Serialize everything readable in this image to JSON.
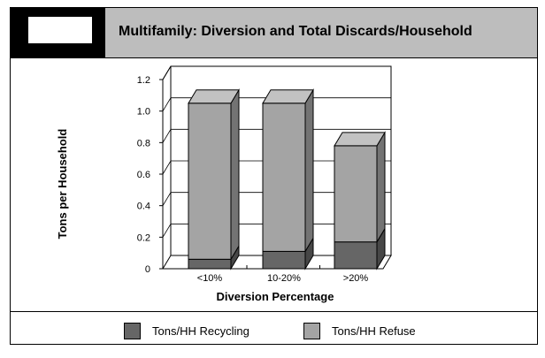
{
  "chart_data": {
    "type": "bar",
    "stacked": true,
    "title": "Multifamily: Diversion and Total Discards/Household",
    "xlabel": "Diversion Percentage",
    "ylabel": "Tons per Household",
    "categories": [
      "<10%",
      "10-20%",
      ">20%"
    ],
    "ylim": [
      0,
      1.2
    ],
    "yticks": [
      "0",
      "0.2",
      "0.4",
      "0.6",
      "0.8",
      "1.0",
      "1.2"
    ],
    "grid": true,
    "legend_position": "bottom",
    "series": [
      {
        "name": "Tons/HH Recycling",
        "values": [
          0.06,
          0.11,
          0.17
        ],
        "color": "#666666"
      },
      {
        "name": "Tons/HH Refuse",
        "values": [
          0.99,
          0.94,
          0.61
        ],
        "color": "#a4a4a4"
      }
    ]
  },
  "colors": {
    "header_block": "#000000",
    "header_band": "#bdbdbd",
    "recycling": "#666666",
    "refuse": "#a4a4a4"
  }
}
